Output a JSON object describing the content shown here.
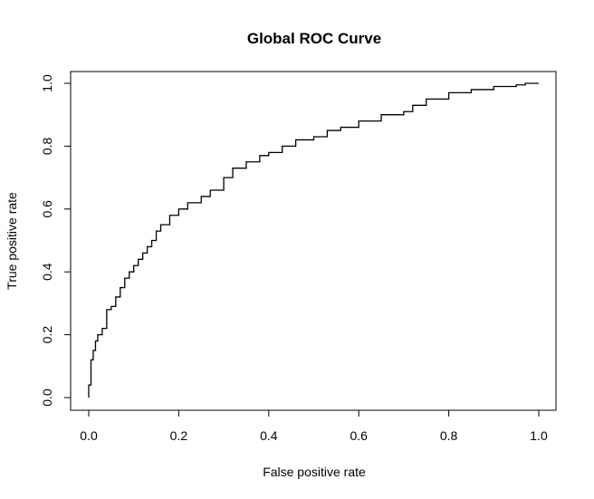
{
  "chart_data": {
    "type": "line",
    "title": "Global ROC Curve",
    "xlabel": "False positive rate",
    "ylabel": "True positive rate",
    "xlim": [
      0,
      1
    ],
    "ylim": [
      0,
      1
    ],
    "x_ticks": [
      0.0,
      0.2,
      0.4,
      0.6,
      0.8,
      1.0
    ],
    "y_ticks": [
      0.0,
      0.2,
      0.4,
      0.6,
      0.8,
      1.0
    ],
    "x_tick_labels": [
      "0.0",
      "0.2",
      "0.4",
      "0.6",
      "0.8",
      "1.0"
    ],
    "y_tick_labels": [
      "0.0",
      "0.2",
      "0.4",
      "0.6",
      "0.8",
      "1.0"
    ],
    "grid": false,
    "line_color": "#000000",
    "series": [
      {
        "x": [
          0.0,
          0.0,
          0.005,
          0.01,
          0.015,
          0.02,
          0.03,
          0.04,
          0.05,
          0.06,
          0.07,
          0.08,
          0.09,
          0.1,
          0.11,
          0.12,
          0.13,
          0.14,
          0.15,
          0.16,
          0.18,
          0.2,
          0.22,
          0.25,
          0.27,
          0.3,
          0.32,
          0.35,
          0.38,
          0.4,
          0.43,
          0.46,
          0.5,
          0.53,
          0.56,
          0.6,
          0.65,
          0.7,
          0.72,
          0.75,
          0.8,
          0.85,
          0.9,
          0.95,
          0.97,
          1.0
        ],
        "y": [
          0.0,
          0.04,
          0.12,
          0.15,
          0.18,
          0.2,
          0.22,
          0.28,
          0.29,
          0.32,
          0.35,
          0.38,
          0.4,
          0.42,
          0.44,
          0.46,
          0.48,
          0.5,
          0.53,
          0.55,
          0.58,
          0.6,
          0.62,
          0.64,
          0.66,
          0.7,
          0.73,
          0.75,
          0.77,
          0.78,
          0.8,
          0.82,
          0.83,
          0.85,
          0.86,
          0.88,
          0.9,
          0.91,
          0.93,
          0.95,
          0.97,
          0.98,
          0.99,
          0.995,
          1.0,
          1.0
        ]
      }
    ]
  }
}
